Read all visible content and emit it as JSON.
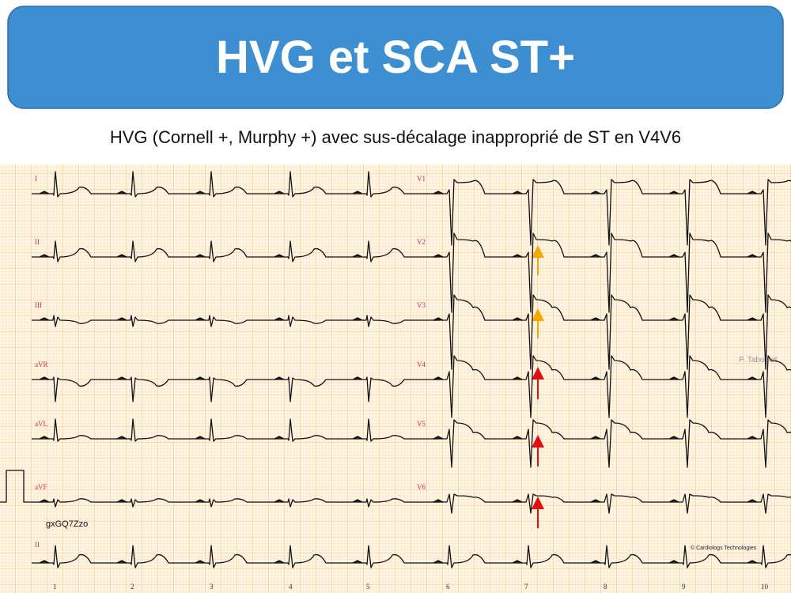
{
  "header": {
    "title": "HVG et SCA ST+",
    "subtitle": "HVG (Cornell +, Murphy +) avec sus-décalage inapproprié de ST en V4V6"
  },
  "ecg": {
    "leads": [
      "I",
      "II",
      "III",
      "aVR",
      "aVL",
      "aVF",
      "V1",
      "V2",
      "V3",
      "V4",
      "V5",
      "V6",
      "II"
    ],
    "code": "gxGQ7Zzo",
    "author": "P. Taboulet",
    "copyright": "© Cardiologs Technologies",
    "column_numbers": [
      "1",
      "2",
      "3",
      "4",
      "5",
      "6",
      "7",
      "8",
      "9",
      "10"
    ]
  }
}
